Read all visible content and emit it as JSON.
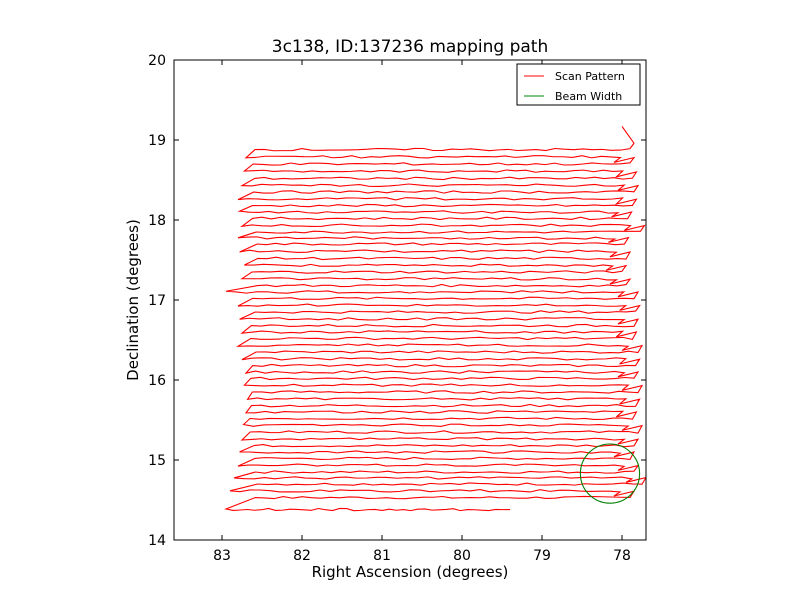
{
  "chart_data": {
    "type": "line",
    "title": "3c138, ID:137236 mapping path",
    "xlabel": "Right Ascension (degrees)",
    "ylabel": "Declination (degrees)",
    "xlim": [
      83.6,
      77.7
    ],
    "ylim": [
      14,
      20
    ],
    "x_reversed": true,
    "x_ticks": [
      83,
      82,
      81,
      80,
      79,
      78
    ],
    "y_ticks": [
      14,
      15,
      16,
      17,
      18,
      19,
      20
    ],
    "grid": false,
    "legend": {
      "placement": "top-right",
      "entries": [
        {
          "label": "Scan Pattern",
          "color": "#ff0000"
        },
        {
          "label": "Beam Width",
          "color": "#008000"
        }
      ]
    },
    "series": [
      {
        "name": "Scan Pattern",
        "color": "#ff0000",
        "x_left_start": 82.95,
        "x_right_start": 79.4,
        "y_start": 14.38,
        "rows": [
          {
            "y": 14.53,
            "x_left": 82.9,
            "x_right": 77.85
          },
          {
            "y": 14.7,
            "x_left": 82.85,
            "x_right": 77.7
          },
          {
            "y": 14.85,
            "x_left": 82.8,
            "x_right": 77.8
          },
          {
            "y": 15.02,
            "x_left": 82.78,
            "x_right": 77.85
          },
          {
            "y": 15.18,
            "x_left": 82.75,
            "x_right": 77.8
          },
          {
            "y": 15.35,
            "x_left": 82.73,
            "x_right": 77.75
          },
          {
            "y": 15.52,
            "x_left": 82.7,
            "x_right": 77.82
          },
          {
            "y": 15.68,
            "x_left": 82.68,
            "x_right": 77.78
          },
          {
            "y": 15.85,
            "x_left": 82.72,
            "x_right": 77.75
          },
          {
            "y": 16.02,
            "x_left": 82.7,
            "x_right": 77.8
          },
          {
            "y": 16.18,
            "x_left": 82.75,
            "x_right": 77.78
          },
          {
            "y": 16.35,
            "x_left": 82.8,
            "x_right": 77.75
          },
          {
            "y": 16.52,
            "x_left": 82.75,
            "x_right": 77.82
          },
          {
            "y": 16.68,
            "x_left": 82.78,
            "x_right": 77.8
          },
          {
            "y": 16.85,
            "x_left": 82.8,
            "x_right": 77.78
          },
          {
            "y": 17.02,
            "x_left": 82.95,
            "x_right": 77.8
          },
          {
            "y": 17.18,
            "x_left": 82.75,
            "x_right": 77.9
          },
          {
            "y": 17.35,
            "x_left": 82.72,
            "x_right": 77.95
          },
          {
            "y": 17.52,
            "x_left": 82.78,
            "x_right": 77.9
          },
          {
            "y": 17.7,
            "x_left": 82.8,
            "x_right": 77.92
          },
          {
            "y": 17.85,
            "x_left": 82.75,
            "x_right": 77.72
          },
          {
            "y": 18.02,
            "x_left": 82.78,
            "x_right": 77.88
          },
          {
            "y": 18.18,
            "x_left": 82.8,
            "x_right": 77.82
          },
          {
            "y": 18.35,
            "x_left": 82.75,
            "x_right": 77.8
          },
          {
            "y": 18.52,
            "x_left": 82.72,
            "x_right": 77.82
          },
          {
            "y": 18.7,
            "x_left": 82.7,
            "x_right": 77.85
          },
          {
            "y": 18.88,
            "x_left": 82.65,
            "x_right": 77.85
          }
        ],
        "end_spike": {
          "x": 78.0,
          "y": 19.17
        }
      },
      {
        "name": "Beam Width",
        "color": "#008000",
        "type": "circle",
        "center": [
          78.15,
          14.83
        ],
        "radius_deg": 0.37
      }
    ]
  }
}
